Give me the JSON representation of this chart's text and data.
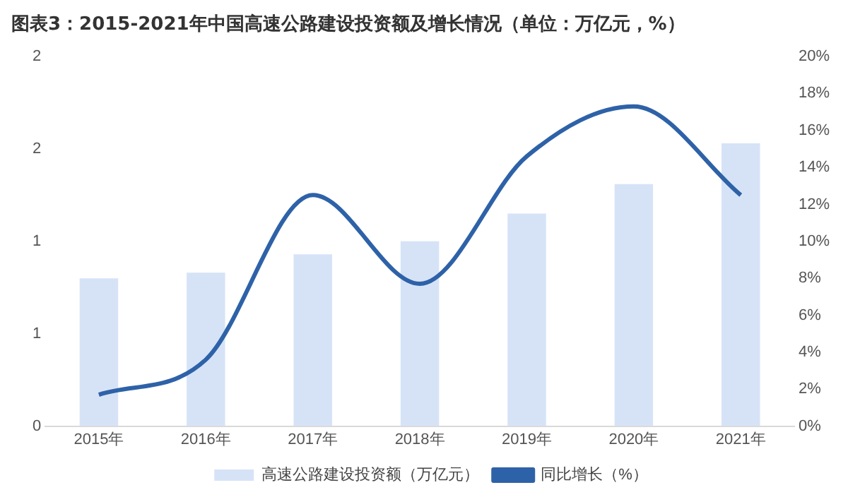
{
  "chart_data": {
    "type": "bar",
    "title": "图表3：2015-2021年中国高速公路建设投资额及增长情况（单位：万亿元，%）",
    "categories": [
      "2015年",
      "2016年",
      "2017年",
      "2018年",
      "2019年",
      "2020年",
      "2021年"
    ],
    "series": [
      {
        "name": "高速公路建设投资额（万亿元）",
        "color": "#d6e3f7",
        "values": [
          0.8,
          0.83,
          0.93,
          1.0,
          1.15,
          1.31,
          1.53
        ]
      },
      {
        "name": "同比增长（%）",
        "type": "line",
        "axis": "y2",
        "color": "#2e62a8",
        "values": [
          1.7,
          3.6,
          12.5,
          7.7,
          14.6,
          17.3,
          12.5
        ]
      }
    ],
    "ylim": [
      0,
      2
    ],
    "yticks": [
      0,
      {
        "value": 0.5,
        "label": "1"
      },
      1,
      {
        "value": 1.5,
        "label": "2"
      },
      2
    ],
    "y2lim": [
      0,
      20
    ],
    "y2ticks": [
      {
        "value": 0,
        "label": "0%"
      },
      {
        "value": 2,
        "label": "2%"
      },
      {
        "value": 4,
        "label": "4%"
      },
      {
        "value": 6,
        "label": "6%"
      },
      {
        "value": 8,
        "label": "8%"
      },
      {
        "value": 10,
        "label": "10%"
      },
      {
        "value": 12,
        "label": "12%"
      },
      {
        "value": 14,
        "label": "14%"
      },
      {
        "value": 16,
        "label": "16%"
      },
      {
        "value": 18,
        "label": "18%"
      },
      {
        "value": 20,
        "label": "20%"
      }
    ],
    "grid": false,
    "legend": "bottom",
    "marker": "none"
  }
}
